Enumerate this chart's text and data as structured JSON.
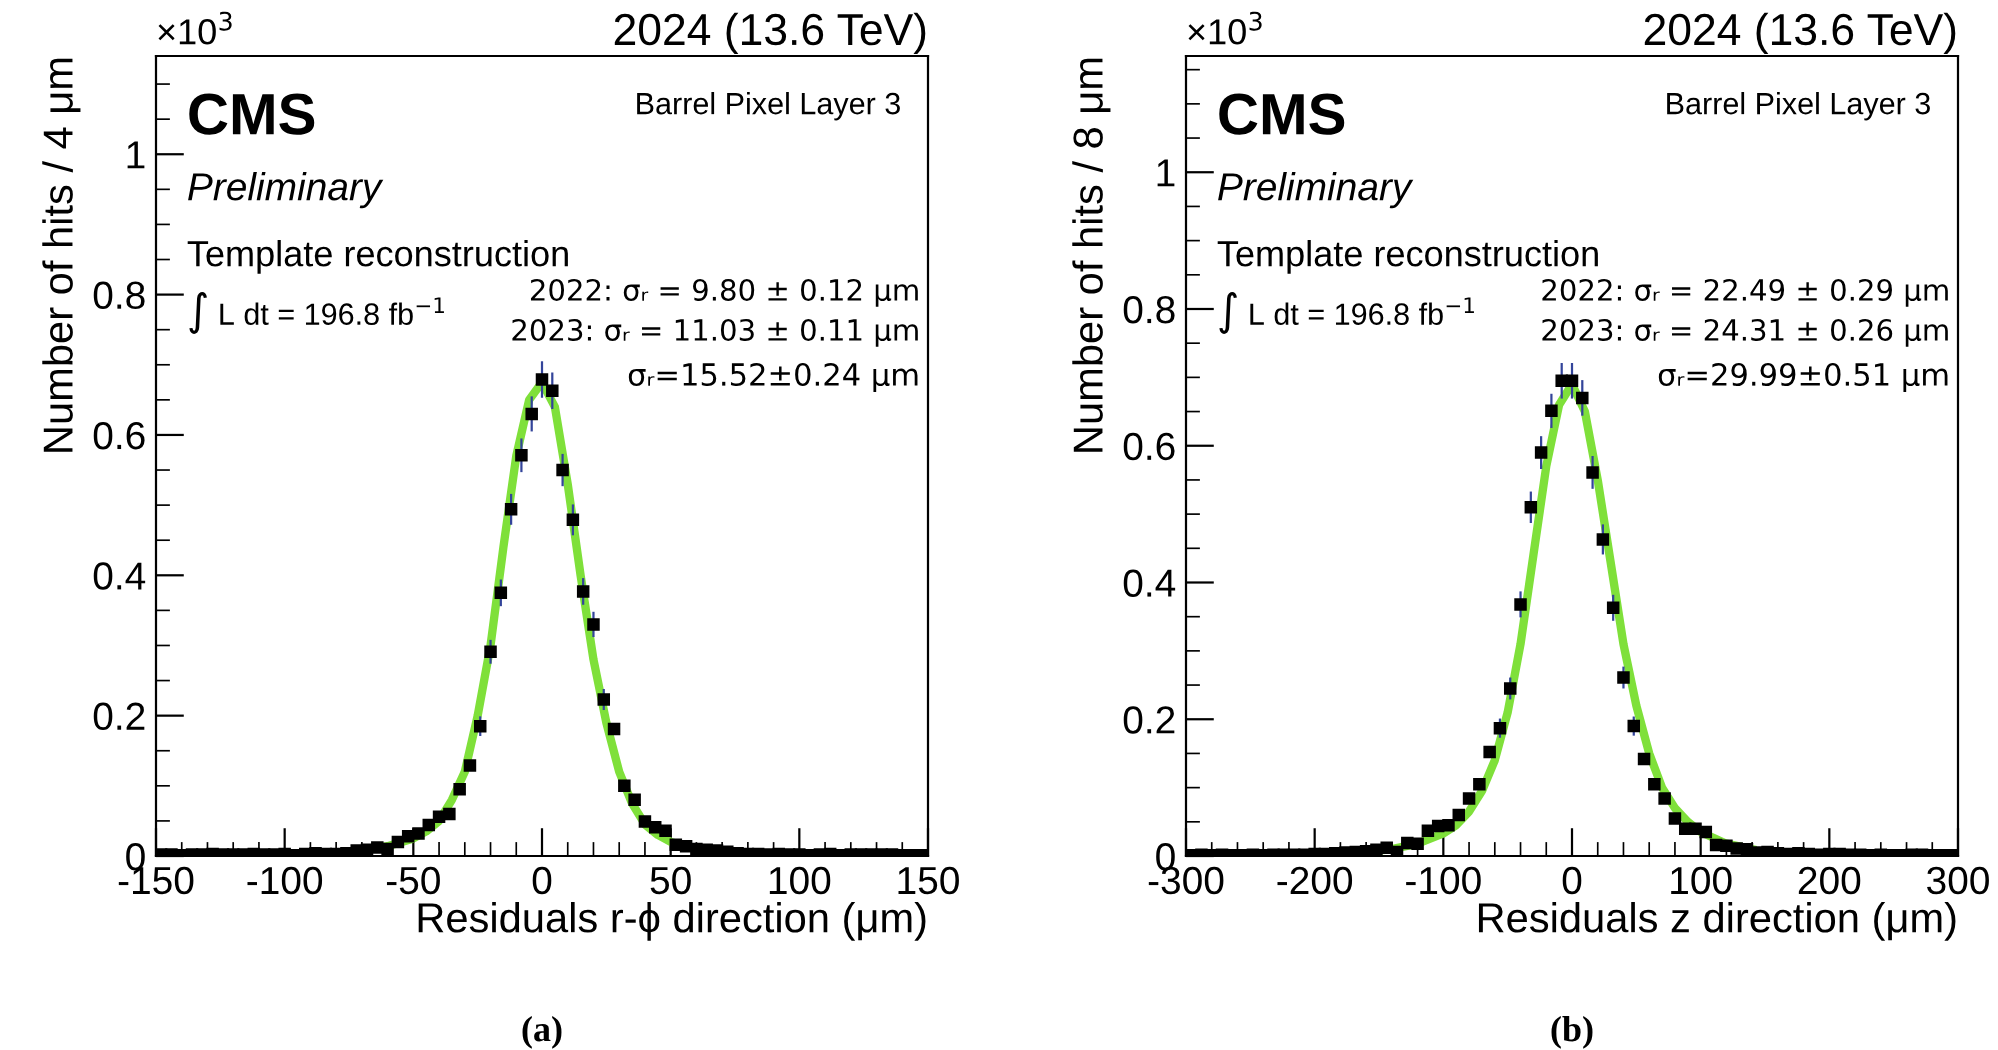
{
  "chart_data": [
    {
      "type": "scatter",
      "title": "2024 (13.6 TeV)",
      "xlabel": "Residuals r-ϕ direction (μm)",
      "ylabel": "Number of hits / 4 μm",
      "annotations": [
        "×10$^{3}$",
        "CMS",
        "Preliminary",
        "Template reconstruction",
        "∫ L dt = 196.8 fb$^{−1}$",
        "Barrel Pixel Layer 3",
        "2022: σᵣ = 9.80 ± 0.12 μm",
        "2023: σᵣ = 11.03 ± 0.11 μm",
        "σᵣ=15.52±0.24 μm",
        "(a)"
      ],
      "xlim": [
        -150,
        150
      ],
      "xticks": [
        -150,
        -100,
        -50,
        0,
        50,
        100,
        150
      ],
      "ylim": [
        0,
        1.14
      ],
      "yticks": [
        0,
        0.2,
        0.4,
        0.6,
        0.8,
        1
      ],
      "grid": false,
      "legend": false,
      "marker": "square",
      "series": [
        {
          "color": "#000000",
          "x": [
            -148,
            -144,
            -140,
            -136,
            -132,
            -128,
            -124,
            -120,
            -116,
            -112,
            -108,
            -104,
            -100,
            -96,
            -92,
            -88,
            -84,
            -80,
            -76,
            -72,
            -68,
            -64,
            -60,
            -56,
            -52,
            -48,
            -44,
            -40,
            -36,
            -32,
            -28,
            -24,
            -20,
            -16,
            -12,
            -8,
            -4,
            0,
            4,
            8,
            12,
            16,
            20,
            24,
            28,
            32,
            36,
            40,
            44,
            48,
            52,
            56,
            60,
            64,
            68,
            72,
            76,
            80,
            84,
            88,
            92,
            96,
            100,
            104,
            108,
            112,
            116,
            120,
            124,
            128,
            132,
            136,
            140,
            144,
            148
          ],
          "values": [
            0.002,
            0.002,
            0.001,
            0.002,
            0.002,
            0.003,
            0.002,
            0.002,
            0.002,
            0.003,
            0.002,
            0.002,
            0.003,
            0.001,
            0.003,
            0.004,
            0.003,
            0.003,
            0.004,
            0.008,
            0.009,
            0.012,
            0.01,
            0.02,
            0.028,
            0.032,
            0.044,
            0.056,
            0.06,
            0.095,
            0.129,
            0.185,
            0.291,
            0.375,
            0.494,
            0.571,
            0.63,
            0.679,
            0.663,
            0.55,
            0.479,
            0.377,
            0.33,
            0.223,
            0.181,
            0.1,
            0.08,
            0.049,
            0.041,
            0.036,
            0.016,
            0.014,
            0.01,
            0.009,
            0.008,
            0.006,
            0.004,
            0.003,
            0.003,
            0.002,
            0.003,
            0.002,
            0.002,
            0.001,
            0.002,
            0.003,
            0.001,
            0.002,
            0.002,
            0.002,
            0.002,
            0.002,
            0.001,
            0.001,
            0.001
          ],
          "errors": [
            null,
            null,
            null,
            null,
            null,
            null,
            null,
            null,
            null,
            null,
            null,
            null,
            null,
            null,
            null,
            null,
            null,
            null,
            null,
            null,
            null,
            null,
            null,
            null,
            null,
            null,
            null,
            null,
            null,
            null,
            null,
            0.014,
            0.017,
            0.019,
            0.022,
            0.024,
            0.025,
            0.026,
            0.026,
            0.023,
            0.022,
            0.019,
            0.018,
            0.015,
            null,
            null,
            null,
            null,
            null,
            null,
            null,
            null,
            null,
            null,
            null,
            null,
            null,
            null,
            null,
            null,
            null,
            null,
            null,
            null,
            null,
            null,
            null,
            null,
            null,
            null,
            null,
            null,
            null,
            null,
            null
          ]
        },
        {
          "type": "line",
          "color": "#7fe03a",
          "marker": "none",
          "x": [
            -70,
            -60,
            -50,
            -45,
            -40,
            -35,
            -30,
            -25,
            -20,
            -15,
            -10,
            -5,
            0,
            5,
            10,
            15,
            20,
            25,
            30,
            35,
            40,
            45,
            50,
            60
          ],
          "values": [
            0.008,
            0.014,
            0.025,
            0.035,
            0.05,
            0.08,
            0.12,
            0.2,
            0.3,
            0.44,
            0.57,
            0.65,
            0.675,
            0.64,
            0.53,
            0.4,
            0.28,
            0.19,
            0.12,
            0.075,
            0.045,
            0.03,
            0.02,
            0.01
          ]
        }
      ]
    },
    {
      "type": "scatter",
      "title": "2024 (13.6 TeV)",
      "xlabel": "Residuals z direction (μm)",
      "ylabel": "Number of hits / 8 μm",
      "annotations": [
        "×10$^{3}$",
        "CMS",
        "Preliminary",
        "Template reconstruction",
        "∫ L dt = 196.8 fb$^{−1}$",
        "Barrel Pixel Layer 3",
        "2022: σᵣ = 22.49 ± 0.29 μm",
        "2023: σᵣ = 24.31 ± 0.26 μm",
        "σᵣ=29.99±0.51 μm",
        "(b)"
      ],
      "xlim": [
        -300,
        300
      ],
      "xticks": [
        -300,
        -200,
        -100,
        0,
        100,
        200,
        300
      ],
      "ylim": [
        0,
        1.17
      ],
      "yticks": [
        0,
        0.2,
        0.4,
        0.6,
        0.8,
        1
      ],
      "grid": false,
      "legend": false,
      "marker": "square",
      "series": [
        {
          "color": "#000000",
          "x": [
            -296,
            -288,
            -280,
            -272,
            -264,
            -256,
            -248,
            -240,
            -232,
            -224,
            -216,
            -208,
            -200,
            -192,
            -184,
            -176,
            -168,
            -160,
            -152,
            -144,
            -136,
            -128,
            -120,
            -112,
            -104,
            -96,
            -88,
            -80,
            -72,
            -64,
            -56,
            -48,
            -40,
            -32,
            -24,
            -16,
            -8,
            0,
            8,
            16,
            24,
            32,
            40,
            48,
            56,
            64,
            72,
            80,
            88,
            96,
            104,
            112,
            120,
            128,
            136,
            144,
            152,
            160,
            168,
            176,
            184,
            192,
            200,
            208,
            216,
            224,
            232,
            240,
            248,
            256,
            264,
            272,
            280,
            288,
            296
          ],
          "values": [
            0.001,
            0.002,
            0.001,
            0.002,
            0.001,
            0.001,
            0.002,
            0.001,
            0.002,
            0.002,
            0.002,
            0.002,
            0.003,
            0.003,
            0.004,
            0.005,
            0.006,
            0.007,
            0.009,
            0.012,
            0.006,
            0.019,
            0.018,
            0.037,
            0.044,
            0.045,
            0.06,
            0.084,
            0.105,
            0.152,
            0.187,
            0.245,
            0.368,
            0.51,
            0.59,
            0.651,
            0.695,
            0.695,
            0.67,
            0.561,
            0.463,
            0.363,
            0.261,
            0.19,
            0.142,
            0.105,
            0.084,
            0.055,
            0.04,
            0.04,
            0.035,
            0.016,
            0.015,
            0.011,
            0.01,
            0.005,
            0.006,
            0.004,
            0.003,
            0.004,
            0.003,
            0.002,
            0.003,
            0.003,
            0.002,
            0.002,
            0.001,
            0.002,
            0.001,
            0.001,
            0.002,
            0.002,
            0.001,
            0.001,
            0.001
          ],
          "errors": [
            null,
            null,
            null,
            null,
            null,
            null,
            null,
            null,
            null,
            null,
            null,
            null,
            null,
            null,
            null,
            null,
            null,
            null,
            null,
            null,
            null,
            null,
            null,
            null,
            null,
            null,
            null,
            null,
            null,
            null,
            0.014,
            0.016,
            0.019,
            0.023,
            0.024,
            0.025,
            0.026,
            0.026,
            0.026,
            0.024,
            0.022,
            0.019,
            0.016,
            0.014,
            null,
            null,
            null,
            null,
            null,
            null,
            null,
            null,
            null,
            null,
            null,
            null,
            null,
            null,
            null,
            null,
            null,
            null,
            null,
            null,
            null,
            null,
            null,
            null,
            null,
            null,
            null,
            null,
            null,
            null,
            null
          ]
        },
        {
          "type": "line",
          "color": "#7fe03a",
          "marker": "none",
          "x": [
            -160,
            -140,
            -120,
            -100,
            -90,
            -80,
            -70,
            -60,
            -50,
            -40,
            -30,
            -20,
            -10,
            0,
            10,
            20,
            30,
            40,
            50,
            60,
            70,
            80,
            90,
            100,
            120,
            140
          ],
          "values": [
            0.006,
            0.01,
            0.018,
            0.033,
            0.045,
            0.065,
            0.095,
            0.14,
            0.21,
            0.31,
            0.44,
            0.57,
            0.66,
            0.69,
            0.65,
            0.55,
            0.43,
            0.31,
            0.22,
            0.15,
            0.1,
            0.07,
            0.05,
            0.035,
            0.018,
            0.01
          ]
        }
      ]
    }
  ]
}
